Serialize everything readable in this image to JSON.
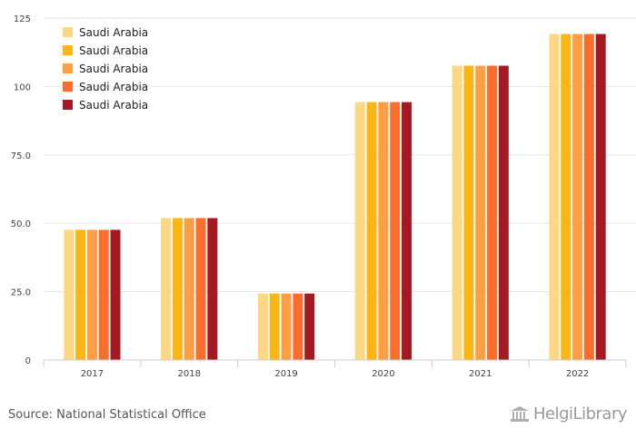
{
  "chart_data": {
    "type": "bar",
    "categories": [
      "2017",
      "2018",
      "2019",
      "2020",
      "2021",
      "2022"
    ],
    "series": [
      {
        "name": "Saudi Arabia",
        "color": "#fdd783",
        "values": [
          47.6,
          51.9,
          24.3,
          94.3,
          107.6,
          119.2
        ]
      },
      {
        "name": "Saudi Arabia",
        "color": "#fbb615",
        "values": [
          47.6,
          51.9,
          24.3,
          94.3,
          107.6,
          119.2
        ]
      },
      {
        "name": "Saudi Arabia",
        "color": "#fe9e44",
        "values": [
          47.6,
          51.9,
          24.3,
          94.3,
          107.6,
          119.2
        ]
      },
      {
        "name": "Saudi Arabia",
        "color": "#fb6d2c",
        "values": [
          47.6,
          51.9,
          24.3,
          94.3,
          107.6,
          119.2
        ]
      },
      {
        "name": "Saudi Arabia",
        "color": "#a51a22",
        "values": [
          47.6,
          51.9,
          24.3,
          94.3,
          107.6,
          119.2
        ]
      }
    ],
    "ylim": [
      0,
      125
    ],
    "yticks": [
      "0",
      "25.0",
      "50.0",
      "75.0",
      "100",
      "125"
    ],
    "ytick_values": [
      0,
      25,
      50,
      75,
      100,
      125
    ],
    "grid": true,
    "legend_position": "top-left"
  },
  "footer": {
    "source": "Source: National Statistical Office",
    "brand": "HelgiLibrary"
  }
}
